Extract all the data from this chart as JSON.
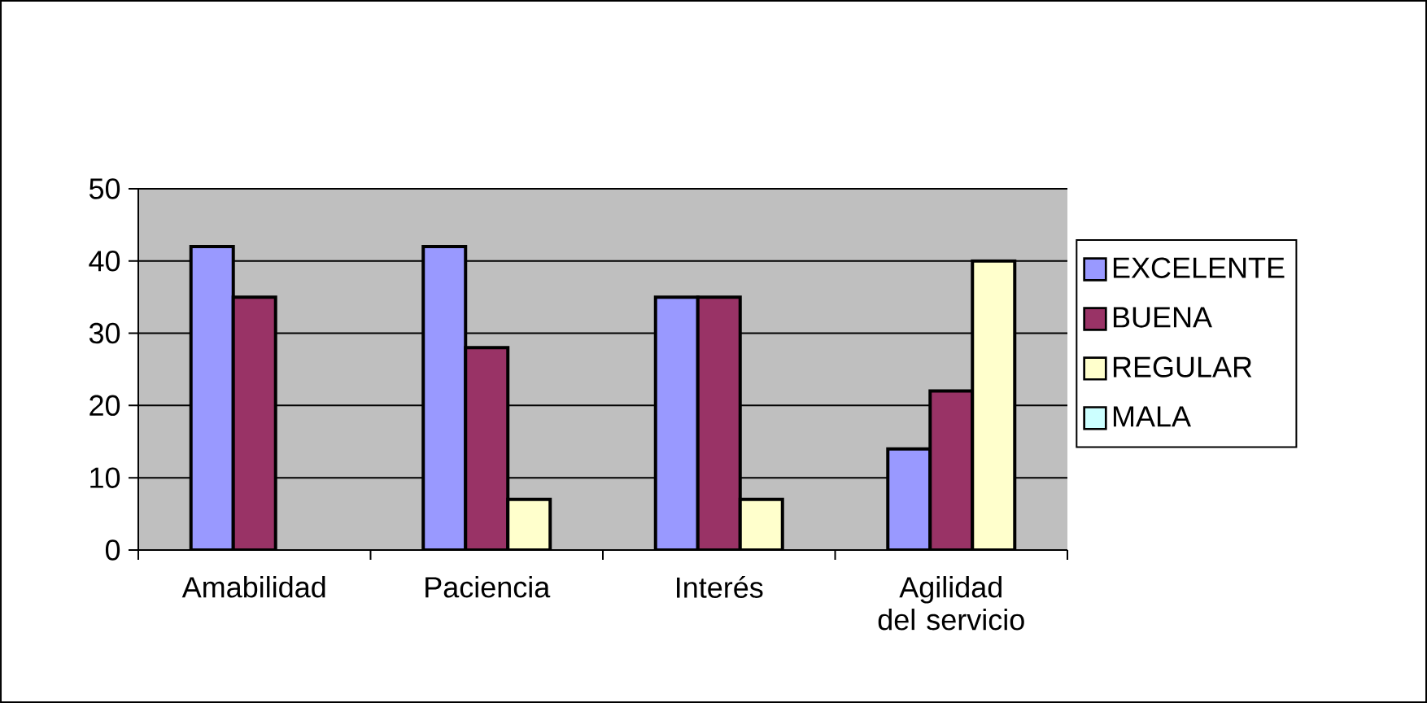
{
  "chart_data": {
    "type": "bar",
    "categories": [
      "Amabilidad",
      "Paciencia",
      "Interés",
      "Agilidad del servicio"
    ],
    "series": [
      {
        "name": "EXCELENTE",
        "color": "#9999ff",
        "values": [
          42,
          42,
          35,
          14
        ]
      },
      {
        "name": "BUENA",
        "color": "#993366",
        "values": [
          35,
          28,
          35,
          22
        ]
      },
      {
        "name": "REGULAR",
        "color": "#ffffcc",
        "values": [
          null,
          7,
          7,
          40
        ]
      },
      {
        "name": "MALA",
        "color": "#ccffff",
        "values": [
          null,
          null,
          null,
          null
        ]
      }
    ],
    "ylim": [
      0,
      50
    ],
    "yticks": [
      0,
      10,
      20,
      30,
      40,
      50
    ],
    "grid": "y",
    "legend": "right"
  }
}
